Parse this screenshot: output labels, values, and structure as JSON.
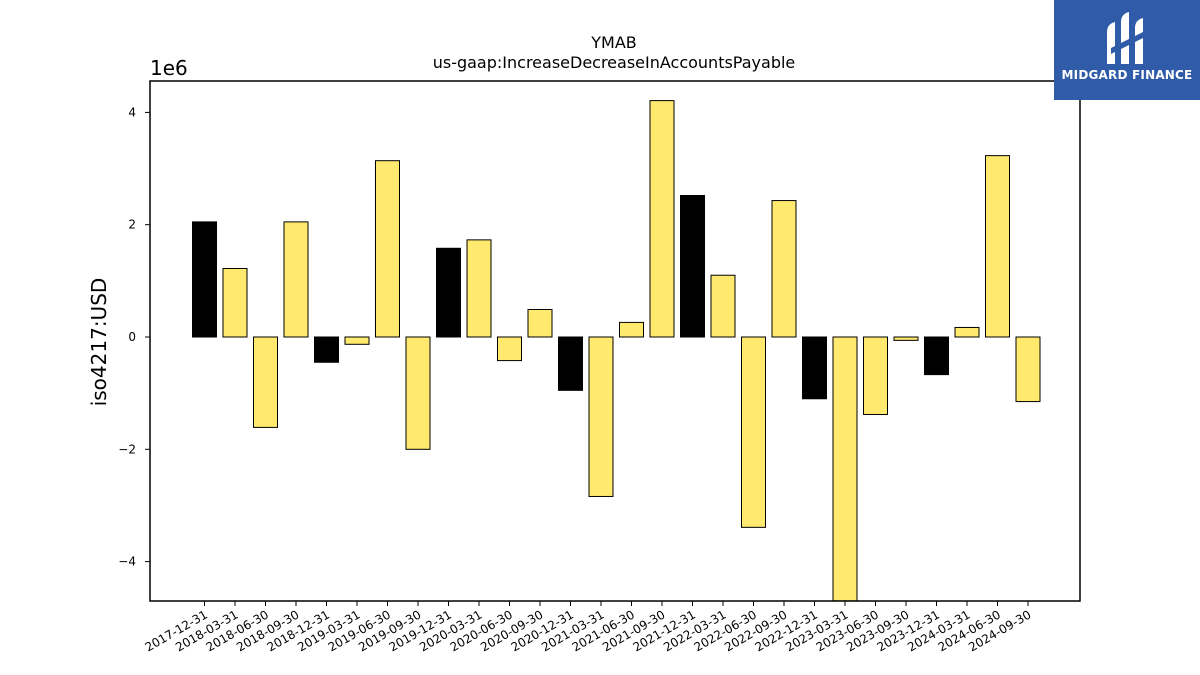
{
  "colors": {
    "positive_negative_highlight": "#000000",
    "bar_default": "#ffe96e",
    "brand_bg": "#2f5ba8"
  },
  "logo": {
    "text": "MIDGARD FINANCE",
    "icon": "midgard-logo-icon"
  },
  "chart_data": {
    "type": "bar",
    "title": "YMAB",
    "subtitle": "us-gaap:IncreaseDecreaseInAccountsPayable",
    "xlabel": "",
    "ylabel": "iso4217:USD",
    "scale_label": "1e6",
    "ylim": [
      -4.7,
      4.5
    ],
    "yticks": [
      -4,
      -2,
      0,
      2,
      4
    ],
    "ytick_labels": [
      "−4",
      "−2",
      "0",
      "2",
      "4"
    ],
    "grid": false,
    "categories": [
      "2017-12-31",
      "2018-03-31",
      "2018-06-30",
      "2018-09-30",
      "2018-12-31",
      "2019-03-31",
      "2019-06-30",
      "2019-09-30",
      "2019-12-31",
      "2020-03-31",
      "2020-06-30",
      "2020-09-30",
      "2020-12-31",
      "2021-03-31",
      "2021-06-30",
      "2021-09-30",
      "2021-12-31",
      "2022-03-31",
      "2022-06-30",
      "2022-09-30",
      "2022-12-31",
      "2023-03-31",
      "2023-06-30",
      "2023-09-30",
      "2023-12-31",
      "2024-03-31",
      "2024-06-30",
      "2024-09-30"
    ],
    "values": [
      2.05,
      1.22,
      -1.61,
      2.05,
      -0.45,
      -0.13,
      3.14,
      -2.0,
      1.58,
      1.73,
      -0.42,
      0.49,
      -0.95,
      -2.84,
      0.26,
      4.21,
      2.52,
      1.1,
      -3.39,
      2.43,
      -1.1,
      -4.7,
      -1.38,
      -0.06,
      -0.67,
      0.17,
      3.23,
      -1.15
    ],
    "highlight": [
      true,
      false,
      false,
      false,
      true,
      false,
      false,
      false,
      true,
      false,
      false,
      false,
      true,
      false,
      false,
      false,
      true,
      false,
      false,
      false,
      true,
      false,
      false,
      false,
      true,
      false,
      false,
      false
    ]
  }
}
